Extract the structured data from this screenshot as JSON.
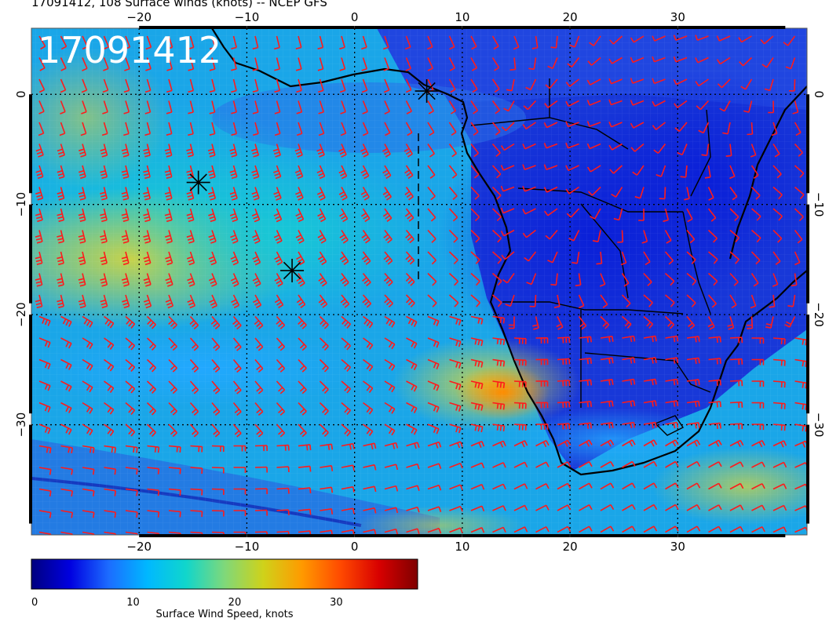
{
  "title": "17091412, 108 Surface winds (knots) -- NCEP GFS",
  "stamp": "17091412",
  "map": {
    "lon_range": [
      -30,
      42
    ],
    "lat_range": [
      -40,
      6
    ],
    "lon_ticks": [
      -20,
      -10,
      0,
      10,
      20,
      30
    ],
    "lat_ticks": [
      0,
      -10,
      -20,
      -30
    ],
    "lon_tick_labels": [
      "−20",
      "−10",
      "0",
      "10",
      "20",
      "30"
    ],
    "lat_tick_labels": [
      "0",
      "−10",
      "−20",
      "−30"
    ],
    "grid": true,
    "barb_color": "#ff1a1a",
    "markers": [
      {
        "lon": -14.5,
        "lat": -8.0
      },
      {
        "lon": -5.8,
        "lat": -16.0
      },
      {
        "lon": 6.7,
        "lat": 0.3
      }
    ]
  },
  "colorbar": {
    "label": "Surface Wind Speed, knots",
    "min": 0,
    "max": 38,
    "ticks": [
      0,
      10,
      20,
      30
    ],
    "tick_labels": [
      "0",
      "10",
      "20",
      "30"
    ],
    "colors": [
      "#00007f",
      "#0000e0",
      "#1c6cff",
      "#00b8ff",
      "#10d6cc",
      "#7fd87a",
      "#cfd21a",
      "#ff9a00",
      "#ff4a00",
      "#d80000",
      "#7f0000"
    ]
  }
}
